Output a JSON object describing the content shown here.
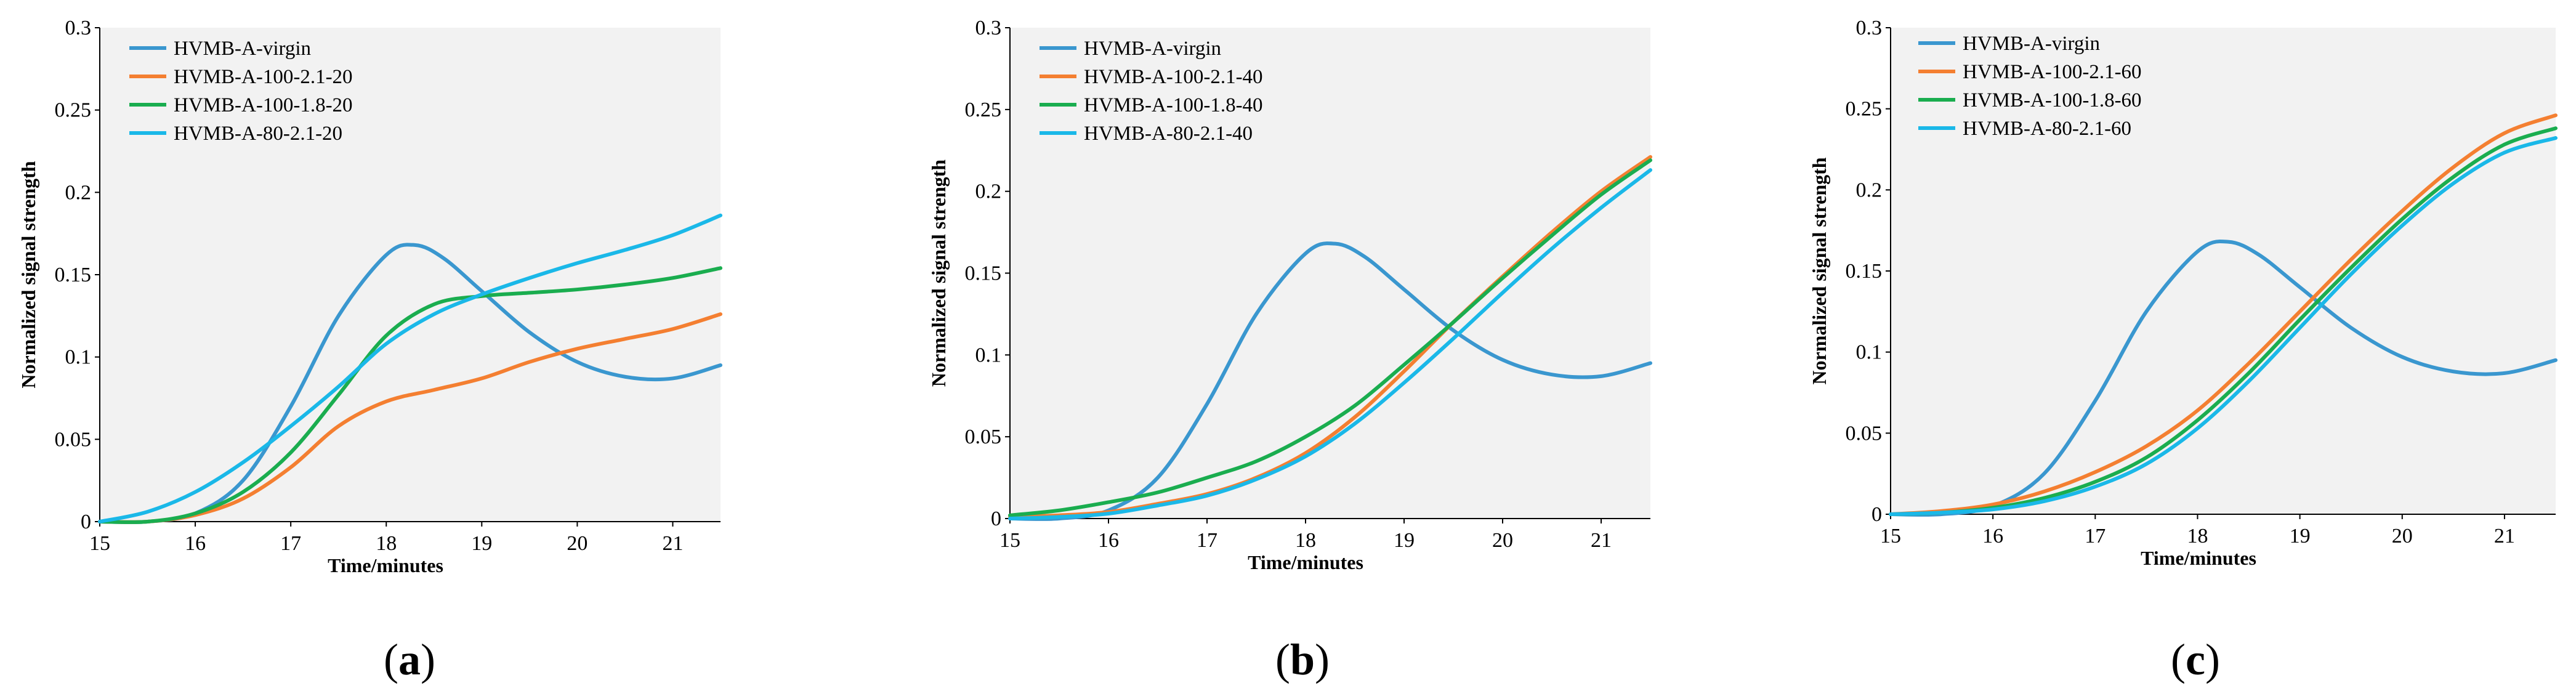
{
  "chart_data": [
    {
      "type": "line",
      "panel_label": "a",
      "xlabel": "Time/minutes",
      "ylabel": "Normalized signal strength",
      "xlim": [
        15,
        21.5
      ],
      "ylim": [
        0,
        0.3
      ],
      "xticks": [
        "15",
        "16",
        "17",
        "18",
        "19",
        "20",
        "21"
      ],
      "yticks": [
        "0",
        "0.05",
        "0.1",
        "0.15",
        "0.2",
        "0.25",
        "0.3"
      ],
      "legend_position": "top-left",
      "series": [
        {
          "name": "HVMB-A-virgin",
          "color": "#3a97cf",
          "x": [
            15,
            15.5,
            16,
            16.5,
            17,
            17.5,
            18,
            18.3,
            18.6,
            19,
            19.5,
            20,
            20.5,
            21,
            21.5
          ],
          "y": [
            0,
            0,
            0.005,
            0.025,
            0.07,
            0.125,
            0.162,
            0.168,
            0.16,
            0.14,
            0.115,
            0.097,
            0.088,
            0.087,
            0.095
          ]
        },
        {
          "name": "HVMB-A-100-2.1-20",
          "color": "#f47f31",
          "x": [
            15,
            15.5,
            16,
            16.5,
            17,
            17.5,
            18,
            18.5,
            19,
            19.5,
            20,
            20.5,
            21,
            21.5
          ],
          "y": [
            0,
            0,
            0.004,
            0.014,
            0.033,
            0.058,
            0.073,
            0.08,
            0.087,
            0.097,
            0.105,
            0.111,
            0.117,
            0.126
          ]
        },
        {
          "name": "HVMB-A-100-1.8-20",
          "color": "#1aad4f",
          "x": [
            15,
            15.5,
            16,
            16.5,
            17,
            17.5,
            18,
            18.5,
            19,
            19.5,
            20,
            20.5,
            21,
            21.5
          ],
          "y": [
            0,
            0,
            0.005,
            0.018,
            0.042,
            0.077,
            0.113,
            0.132,
            0.137,
            0.139,
            0.141,
            0.144,
            0.148,
            0.154
          ]
        },
        {
          "name": "HVMB-A-80-2.1-20",
          "color": "#1ab8e8",
          "x": [
            15,
            15.5,
            16,
            16.5,
            17,
            17.5,
            18,
            18.5,
            19,
            19.5,
            20,
            20.5,
            21,
            21.5
          ],
          "y": [
            0,
            0.006,
            0.018,
            0.036,
            0.058,
            0.082,
            0.108,
            0.126,
            0.138,
            0.148,
            0.157,
            0.165,
            0.174,
            0.186
          ]
        }
      ]
    },
    {
      "type": "line",
      "panel_label": "b",
      "xlabel": "Time/minutes",
      "ylabel": "Normalized signal strength",
      "xlim": [
        15,
        21.5
      ],
      "ylim": [
        0,
        0.3
      ],
      "xticks": [
        "15",
        "16",
        "17",
        "18",
        "19",
        "20",
        "21"
      ],
      "yticks": [
        "0",
        "0.05",
        "0.1",
        "0.15",
        "0.2",
        "0.25",
        "0.3"
      ],
      "legend_position": "top-left",
      "series": [
        {
          "name": "HVMB-A-virgin",
          "color": "#3a97cf",
          "x": [
            15,
            15.5,
            16,
            16.5,
            17,
            17.5,
            18,
            18.3,
            18.6,
            19,
            19.5,
            20,
            20.5,
            21,
            21.5
          ],
          "y": [
            0,
            0,
            0.005,
            0.025,
            0.07,
            0.125,
            0.162,
            0.168,
            0.16,
            0.14,
            0.115,
            0.097,
            0.088,
            0.087,
            0.095
          ]
        },
        {
          "name": "HVMB-A-100-2.1-40",
          "color": "#f47f31",
          "x": [
            15,
            15.5,
            16,
            16.5,
            17,
            17.5,
            18,
            18.5,
            19,
            19.5,
            20,
            20.5,
            21,
            21.5
          ],
          "y": [
            0.001,
            0.002,
            0.004,
            0.009,
            0.015,
            0.025,
            0.04,
            0.062,
            0.09,
            0.12,
            0.148,
            0.175,
            0.2,
            0.221
          ]
        },
        {
          "name": "HVMB-A-100-1.8-40",
          "color": "#1aad4f",
          "x": [
            15,
            15.5,
            16,
            16.5,
            17,
            17.5,
            18,
            18.5,
            19,
            19.5,
            20,
            20.5,
            21,
            21.5
          ],
          "y": [
            0.002,
            0.005,
            0.01,
            0.016,
            0.025,
            0.035,
            0.05,
            0.069,
            0.094,
            0.12,
            0.147,
            0.173,
            0.198,
            0.219
          ]
        },
        {
          "name": "HVMB-A-80-2.1-40",
          "color": "#1ab8e8",
          "x": [
            15,
            15.5,
            16,
            16.5,
            17,
            17.5,
            18,
            18.5,
            19,
            19.5,
            20,
            20.5,
            21,
            21.5
          ],
          "y": [
            0,
            0.001,
            0.003,
            0.008,
            0.014,
            0.024,
            0.038,
            0.058,
            0.083,
            0.11,
            0.138,
            0.165,
            0.19,
            0.213
          ]
        }
      ]
    },
    {
      "type": "line",
      "panel_label": "c",
      "xlabel": "Time/minutes",
      "ylabel": "Normalized signal strength",
      "xlim": [
        15,
        21.5
      ],
      "ylim": [
        0,
        0.3
      ],
      "xticks": [
        "15",
        "16",
        "17",
        "18",
        "19",
        "20",
        "21"
      ],
      "yticks": [
        "0",
        "0.05",
        "0.1",
        "0.15",
        "0.2",
        "0.25",
        "0.3"
      ],
      "legend_position": "top-left",
      "series": [
        {
          "name": "HVMB-A-virgin",
          "color": "#3a97cf",
          "x": [
            15,
            15.5,
            16,
            16.5,
            17,
            17.5,
            18,
            18.3,
            18.6,
            19,
            19.5,
            20,
            20.5,
            21,
            21.5
          ],
          "y": [
            0,
            0,
            0.005,
            0.025,
            0.07,
            0.125,
            0.162,
            0.168,
            0.16,
            0.14,
            0.115,
            0.097,
            0.088,
            0.087,
            0.095
          ]
        },
        {
          "name": "HVMB-A-100-2.1-60",
          "color": "#f47f31",
          "x": [
            15,
            15.5,
            16,
            16.5,
            17,
            17.5,
            18,
            18.5,
            19,
            19.5,
            20,
            20.5,
            21,
            21.5
          ],
          "y": [
            0,
            0.002,
            0.006,
            0.014,
            0.026,
            0.042,
            0.064,
            0.093,
            0.125,
            0.157,
            0.187,
            0.214,
            0.235,
            0.246
          ]
        },
        {
          "name": "HVMB-A-100-1.8-60",
          "color": "#1aad4f",
          "x": [
            15,
            15.5,
            16,
            16.5,
            17,
            17.5,
            18,
            18.5,
            19,
            19.5,
            20,
            20.5,
            21,
            21.5
          ],
          "y": [
            0,
            0.001,
            0.004,
            0.01,
            0.02,
            0.035,
            0.058,
            0.087,
            0.12,
            0.152,
            0.182,
            0.208,
            0.228,
            0.238
          ]
        },
        {
          "name": "HVMB-A-80-2.1-60",
          "color": "#1ab8e8",
          "x": [
            15,
            15.5,
            16,
            16.5,
            17,
            17.5,
            18,
            18.5,
            19,
            19.5,
            20,
            20.5,
            21,
            21.5
          ],
          "y": [
            0,
            0.001,
            0.003,
            0.008,
            0.017,
            0.031,
            0.053,
            0.082,
            0.115,
            0.148,
            0.178,
            0.204,
            0.223,
            0.232
          ]
        }
      ]
    }
  ]
}
